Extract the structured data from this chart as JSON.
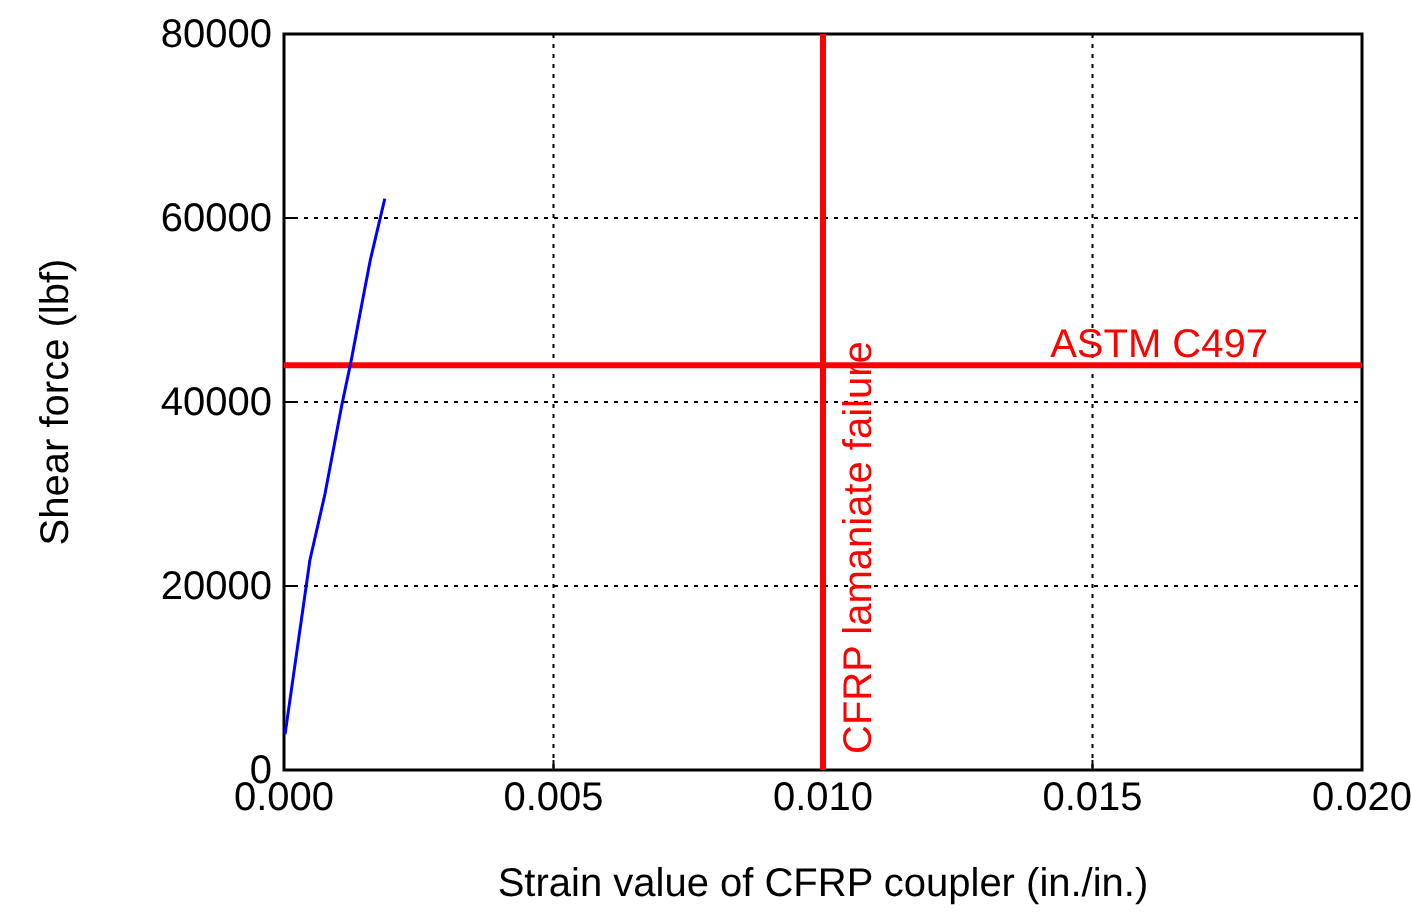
{
  "chart_data": {
    "type": "line",
    "xlabel": "Strain value of CFRP coupler (in./in.)",
    "ylabel": "Shear force (lbf)",
    "x": [
      2e-05,
      0.00048,
      0.00076,
      0.00107,
      0.00125,
      0.00141,
      0.0016,
      0.00187
    ],
    "series": [
      {
        "color": "#0000ff",
        "values": [
          3900,
          22800,
          30000,
          39600,
          44600,
          49600,
          55400,
          62100
        ]
      }
    ],
    "xlim": [
      0,
      0.02
    ],
    "xticks": [
      {
        "value": 0,
        "label": "0.000"
      },
      {
        "value": 0.005,
        "label": "0.005"
      },
      {
        "value": 0.01,
        "label": "0.010"
      },
      {
        "value": 0.015,
        "label": "0.015"
      },
      {
        "value": 0.02,
        "label": "0.020"
      }
    ],
    "ylim": [
      0,
      80000
    ],
    "yticks": [
      0,
      20000,
      40000,
      60000,
      80000
    ],
    "grid": true,
    "ref_lines": [
      {
        "axis": "x",
        "value": 0.01,
        "label": "CFRP lamaniate failure",
        "color": "#ff0000"
      },
      {
        "axis": "y",
        "value": 44000,
        "label": "ASTM C497",
        "color": "#ff0000"
      }
    ]
  }
}
